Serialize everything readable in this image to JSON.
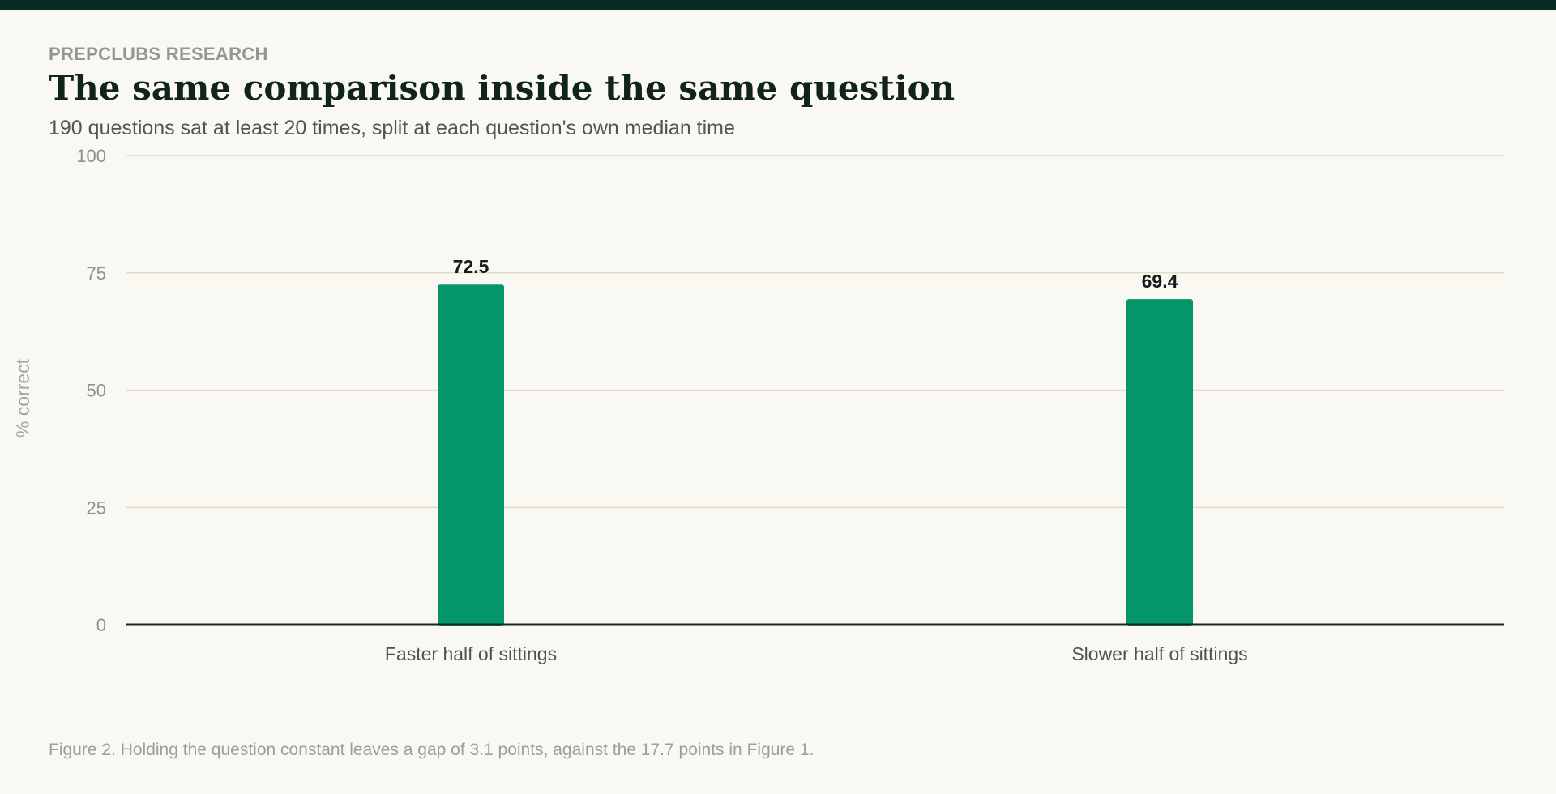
{
  "header": {
    "eyebrow": "PREPCLUBS RESEARCH",
    "title": "The same comparison inside the same question",
    "subtitle": "190 questions sat at least 20 times, split at each question's own median time"
  },
  "footnote": "Figure 2. Holding the question constant leaves a gap of 3.1 points, against the 17.7 points in Figure 1.",
  "colors": {
    "bar": "#05956a",
    "grid": "#e2dcc6",
    "axis": "#1b2620",
    "tick": "#8d928b",
    "category": "#4d5450",
    "value_label": "#151d18"
  },
  "chart_data": {
    "type": "bar",
    "categories": [
      "Faster half of sittings",
      "Slower half of sittings"
    ],
    "values": [
      72.5,
      69.4
    ],
    "value_labels": [
      "72.5",
      "69.4"
    ],
    "ylabel": "% correct",
    "ylim": [
      0,
      100
    ],
    "yticks": [
      0,
      25,
      50,
      75,
      100
    ],
    "grid": true
  }
}
